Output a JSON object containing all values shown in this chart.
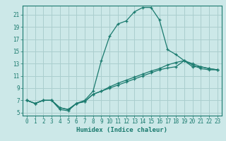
{
  "xlabel": "Humidex (Indice chaleur)",
  "xlim": [
    -0.5,
    23.5
  ],
  "ylim": [
    4.5,
    22.5
  ],
  "yticks": [
    5,
    7,
    9,
    11,
    13,
    15,
    17,
    19,
    21
  ],
  "xticks": [
    0,
    1,
    2,
    3,
    4,
    5,
    6,
    7,
    8,
    9,
    10,
    11,
    12,
    13,
    14,
    15,
    16,
    17,
    18,
    19,
    20,
    21,
    22,
    23
  ],
  "bg_color": "#cce8e8",
  "grid_color": "#aacece",
  "line_color": "#1a7a6e",
  "line1_x": [
    0,
    1,
    2,
    3,
    4,
    5,
    6,
    7,
    8,
    9,
    10,
    11,
    12,
    13,
    14,
    15,
    16,
    17,
    18,
    19,
    20,
    21,
    22,
    23
  ],
  "line1_y": [
    7.0,
    6.5,
    7.0,
    7.0,
    5.5,
    5.3,
    6.5,
    7.0,
    8.5,
    13.5,
    17.5,
    19.5,
    20.0,
    21.5,
    22.2,
    22.2,
    20.2,
    15.3,
    14.5,
    13.5,
    12.5,
    12.5,
    12.2,
    12.0
  ],
  "line2_x": [
    0,
    1,
    2,
    3,
    4,
    5,
    6,
    7,
    8,
    9,
    10,
    11,
    12,
    13,
    14,
    15,
    16,
    17,
    18,
    19,
    20,
    21,
    22,
    23
  ],
  "line2_y": [
    7.0,
    6.5,
    7.0,
    7.0,
    5.8,
    5.5,
    6.5,
    6.8,
    8.0,
    8.5,
    9.2,
    9.8,
    10.3,
    10.8,
    11.3,
    11.8,
    12.2,
    12.8,
    13.2,
    13.5,
    12.8,
    12.2,
    12.0,
    12.0
  ],
  "line3_x": [
    0,
    1,
    2,
    3,
    4,
    5,
    6,
    7,
    8,
    9,
    10,
    11,
    12,
    13,
    14,
    15,
    16,
    17,
    18,
    19,
    20,
    21,
    22,
    23
  ],
  "line3_y": [
    7.0,
    6.5,
    7.0,
    7.0,
    5.8,
    5.5,
    6.5,
    6.8,
    8.0,
    8.5,
    9.0,
    9.5,
    10.0,
    10.5,
    11.0,
    11.5,
    12.0,
    12.3,
    12.5,
    13.5,
    13.0,
    12.5,
    12.2,
    12.0
  ]
}
